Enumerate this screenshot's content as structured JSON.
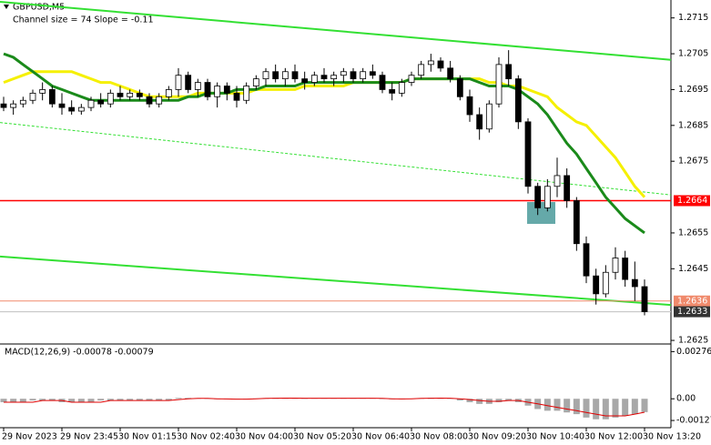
{
  "chart_data": {
    "type": "candlestick",
    "title": "GBPUSD,M5",
    "subtitle": "Channel size = 74 Slope = -0.11",
    "categories": [
      "29 Nov 2023",
      null,
      null,
      null,
      null,
      null,
      "29 Nov 23:45",
      null,
      null,
      null,
      null,
      null,
      "30 Nov 01:15",
      null,
      null,
      null,
      null,
      null,
      "30 Nov 02:40",
      null,
      null,
      null,
      null,
      null,
      "30 Nov 04:00",
      null,
      null,
      null,
      null,
      null,
      "30 Nov 05:20",
      null,
      null,
      null,
      null,
      null,
      "30 Nov 06:40",
      null,
      null,
      null,
      null,
      null,
      "30 Nov 08:00",
      null,
      null,
      null,
      null,
      null,
      "30 Nov 09:20",
      null,
      null,
      null,
      null,
      null,
      "30 Nov 10:40",
      null,
      null,
      null,
      null,
      null,
      "30 Nov 12:00",
      null,
      null,
      null,
      null,
      null,
      "30 Nov 13:20"
    ],
    "ohlc": [
      [
        1.2691,
        1.2693,
        1.2689,
        1.269
      ],
      [
        1.269,
        1.2692,
        1.2688,
        1.2691
      ],
      [
        1.2691,
        1.2693,
        1.269,
        1.2692
      ],
      [
        1.2692,
        1.2695,
        1.2691,
        1.2694
      ],
      [
        1.2694,
        1.2697,
        1.2692,
        1.2695
      ],
      [
        1.2695,
        1.2696,
        1.269,
        1.2691
      ],
      [
        1.2691,
        1.2694,
        1.2688,
        1.269
      ],
      [
        1.269,
        1.2692,
        1.2688,
        1.2689
      ],
      [
        1.2689,
        1.2691,
        1.2688,
        1.269
      ],
      [
        1.269,
        1.2693,
        1.2689,
        1.2692
      ],
      [
        1.2692,
        1.2694,
        1.269,
        1.2691
      ],
      [
        1.2691,
        1.2695,
        1.269,
        1.2694
      ],
      [
        1.2694,
        1.2696,
        1.2692,
        1.2693
      ],
      [
        1.2693,
        1.2695,
        1.2692,
        1.2694
      ],
      [
        1.2694,
        1.2695,
        1.2692,
        1.2693
      ],
      [
        1.2693,
        1.2694,
        1.269,
        1.2691
      ],
      [
        1.2691,
        1.2694,
        1.269,
        1.2693
      ],
      [
        1.2693,
        1.2696,
        1.2692,
        1.2695
      ],
      [
        1.2695,
        1.2701,
        1.2693,
        1.2699
      ],
      [
        1.2699,
        1.27,
        1.2694,
        1.2695
      ],
      [
        1.2695,
        1.2698,
        1.2693,
        1.2697
      ],
      [
        1.2697,
        1.2698,
        1.2692,
        1.2693
      ],
      [
        1.2693,
        1.2697,
        1.269,
        1.2696
      ],
      [
        1.2696,
        1.2697,
        1.2692,
        1.2694
      ],
      [
        1.2694,
        1.2696,
        1.269,
        1.2692
      ],
      [
        1.2692,
        1.2697,
        1.2691,
        1.2696
      ],
      [
        1.2696,
        1.2699,
        1.2695,
        1.2698
      ],
      [
        1.2698,
        1.2701,
        1.2696,
        1.27
      ],
      [
        1.27,
        1.2702,
        1.2697,
        1.2698
      ],
      [
        1.2698,
        1.2701,
        1.2696,
        1.27
      ],
      [
        1.27,
        1.2702,
        1.2697,
        1.2698
      ],
      [
        1.2698,
        1.27,
        1.2695,
        1.2697
      ],
      [
        1.2697,
        1.27,
        1.2696,
        1.2699
      ],
      [
        1.2699,
        1.2701,
        1.2697,
        1.2698
      ],
      [
        1.2698,
        1.27,
        1.2696,
        1.2699
      ],
      [
        1.2699,
        1.2701,
        1.2697,
        1.27
      ],
      [
        1.27,
        1.2701,
        1.2697,
        1.2698
      ],
      [
        1.2698,
        1.2701,
        1.2697,
        1.27
      ],
      [
        1.27,
        1.2702,
        1.2698,
        1.2699
      ],
      [
        1.2699,
        1.27,
        1.2694,
        1.2695
      ],
      [
        1.2695,
        1.2697,
        1.2692,
        1.2694
      ],
      [
        1.2694,
        1.2698,
        1.2693,
        1.2697
      ],
      [
        1.2697,
        1.27,
        1.2696,
        1.2699
      ],
      [
        1.2699,
        1.2703,
        1.2698,
        1.2702
      ],
      [
        1.2702,
        1.2705,
        1.27,
        1.2703
      ],
      [
        1.2703,
        1.2704,
        1.27,
        1.2701
      ],
      [
        1.2701,
        1.2703,
        1.2697,
        1.2698
      ],
      [
        1.2698,
        1.2699,
        1.2692,
        1.2693
      ],
      [
        1.2693,
        1.2695,
        1.2686,
        1.2688
      ],
      [
        1.2688,
        1.269,
        1.2681,
        1.2684
      ],
      [
        1.2684,
        1.2692,
        1.2683,
        1.2691
      ],
      [
        1.2691,
        1.2704,
        1.269,
        1.2702
      ],
      [
        1.2702,
        1.2706,
        1.2696,
        1.2698
      ],
      [
        1.2698,
        1.2699,
        1.2684,
        1.2686
      ],
      [
        1.2686,
        1.2687,
        1.2666,
        1.2668
      ],
      [
        1.2668,
        1.2669,
        1.266,
        1.2662
      ],
      [
        1.2662,
        1.267,
        1.2661,
        1.2668
      ],
      [
        1.2668,
        1.2676,
        1.2665,
        1.2671
      ],
      [
        1.2671,
        1.2673,
        1.2662,
        1.2664
      ],
      [
        1.2664,
        1.2665,
        1.265,
        1.2652
      ],
      [
        1.2652,
        1.2654,
        1.2641,
        1.2643
      ],
      [
        1.2643,
        1.2645,
        1.2635,
        1.2638
      ],
      [
        1.2638,
        1.2646,
        1.2637,
        1.2644
      ],
      [
        1.2644,
        1.2651,
        1.2642,
        1.2648
      ],
      [
        1.2648,
        1.265,
        1.264,
        1.2642
      ],
      [
        1.2642,
        1.2647,
        1.2636,
        1.264
      ],
      [
        1.264,
        1.2642,
        1.2632,
        1.2633
      ]
    ],
    "ylim": [
      1.2624,
      1.272
    ],
    "yticks": [
      1.2715,
      1.2705,
      1.2695,
      1.2685,
      1.2675,
      1.2655,
      1.2645,
      1.2625
    ],
    "moving_averages": [
      {
        "color": "#f5f000",
        "values": [
          1.2697,
          1.2698,
          1.2699,
          1.27,
          1.27,
          1.27,
          1.27,
          1.27,
          1.2699,
          1.2698,
          1.2697,
          1.2697,
          1.2696,
          1.2695,
          1.2694,
          1.2693,
          1.2693,
          1.2693,
          1.2693,
          1.2693,
          1.2694,
          1.2694,
          1.2694,
          1.2694,
          1.2694,
          1.2694,
          1.2695,
          1.2695,
          1.2695,
          1.2695,
          1.2695,
          1.2696,
          1.2696,
          1.2696,
          1.2696,
          1.2696,
          1.2697,
          1.2697,
          1.2697,
          1.2697,
          1.2697,
          1.2697,
          1.2698,
          1.2698,
          1.2698,
          1.2698,
          1.2698,
          1.2698,
          1.2698,
          1.2698,
          1.2697,
          1.2697,
          1.2696,
          1.2696,
          1.2695,
          1.2694,
          1.2693,
          1.269,
          1.2688,
          1.2686,
          1.2685,
          1.2682,
          1.2679,
          1.2676,
          1.2672,
          1.2668,
          1.2665
        ]
      },
      {
        "color": "#1a8a1a",
        "values": [
          1.2705,
          1.2704,
          1.2702,
          1.27,
          1.2698,
          1.2696,
          1.2695,
          1.2694,
          1.2693,
          1.2692,
          1.2692,
          1.2692,
          1.2692,
          1.2692,
          1.2692,
          1.2692,
          1.2692,
          1.2692,
          1.2692,
          1.2693,
          1.2693,
          1.2694,
          1.2694,
          1.2694,
          1.2695,
          1.2695,
          1.2695,
          1.2696,
          1.2696,
          1.2696,
          1.2696,
          1.2697,
          1.2697,
          1.2697,
          1.2697,
          1.2697,
          1.2697,
          1.2697,
          1.2697,
          1.2697,
          1.2697,
          1.2697,
          1.2698,
          1.2698,
          1.2698,
          1.2698,
          1.2698,
          1.2698,
          1.2698,
          1.2697,
          1.2696,
          1.2696,
          1.2696,
          1.2695,
          1.2693,
          1.2691,
          1.2688,
          1.2684,
          1.268,
          1.2677,
          1.2673,
          1.2669,
          1.2665,
          1.2662,
          1.2659,
          1.2657,
          1.2655
        ]
      }
    ],
    "channel": [
      {
        "color": "#33e033",
        "dashed": false,
        "values": [
          1.27195,
          1.27033
        ]
      },
      {
        "color": "#33e033",
        "dashed": true,
        "values": [
          1.26858,
          1.26656
        ]
      },
      {
        "color": "#33e033",
        "dashed": false,
        "values": [
          1.26484,
          1.26349
        ]
      }
    ],
    "levels": [
      {
        "value": 1.2664,
        "color": "#ff0000"
      },
      {
        "value": 1.2636,
        "color": "#f08a6c"
      },
      {
        "value": 1.2633,
        "color": "#c0c0c0"
      }
    ],
    "macd": {
      "label": "MACD(12,26,9) -0.00078 -0.00079",
      "ylim": [
        -0.0018,
        0.0031
      ],
      "yticks": [
        0.00276,
        {
          "value": 0,
          "label": "0.00"
        },
        -0.00127
      ],
      "histogram": {
        "color": "#a8a8a8",
        "values": [
          -0.0002,
          -0.0002,
          -0.0002,
          -0.0001,
          -0.0001,
          -0.0001,
          -0.0002,
          -0.0002,
          -0.0002,
          -0.0002,
          -0.0001,
          -0.0001,
          -0.0001,
          -0.0001,
          -0.0001,
          -0.0001,
          -0.0001,
          -0.0001,
          5e-05,
          5e-05,
          3e-05,
          2e-05,
          -2e-05,
          -3e-05,
          -4e-05,
          -2e-05,
          2e-05,
          4e-05,
          5e-05,
          5e-05,
          4e-05,
          2e-05,
          3e-05,
          3e-05,
          3e-05,
          4e-05,
          3e-05,
          3e-05,
          3e-05,
          1e-05,
          -3e-05,
          -3e-05,
          1e-05,
          4e-05,
          6e-05,
          5e-05,
          2e-05,
          -0.0001,
          -0.0002,
          -0.0003,
          -0.0003,
          -0.0002,
          -0.0001,
          -0.0002,
          -0.0004,
          -0.0006,
          -0.0007,
          -0.0007,
          -0.0008,
          -0.0009,
          -0.0011,
          -0.0012,
          -0.0012,
          -0.0011,
          -0.001,
          -0.0009,
          -0.00078
        ]
      },
      "signal": {
        "color": "#e00000",
        "values": [
          -0.0002,
          -0.0002,
          -0.0002,
          -0.0002,
          -0.0001,
          -0.0001,
          -0.0001,
          -0.0002,
          -0.0002,
          -0.0002,
          -0.0002,
          -0.0001,
          -0.0001,
          -0.0001,
          -0.0001,
          -0.0001,
          -0.0001,
          -0.0001,
          -5e-05,
          0,
          2e-05,
          2e-05,
          0,
          -1e-05,
          -2e-05,
          -2e-05,
          0,
          2e-05,
          3e-05,
          4e-05,
          4e-05,
          3e-05,
          3e-05,
          3e-05,
          3e-05,
          3e-05,
          3e-05,
          3e-05,
          3e-05,
          2e-05,
          0,
          -1e-05,
          0,
          2e-05,
          3e-05,
          4e-05,
          3e-05,
          0,
          -5e-05,
          -0.0001,
          -0.00015,
          -0.00015,
          -0.0001,
          -0.0001,
          -0.0002,
          -0.0003,
          -0.0004,
          -0.0005,
          -0.0006,
          -0.0007,
          -0.0008,
          -0.0009,
          -0.001,
          -0.001,
          -0.001,
          -0.0009,
          -0.00079
        ]
      }
    }
  }
}
